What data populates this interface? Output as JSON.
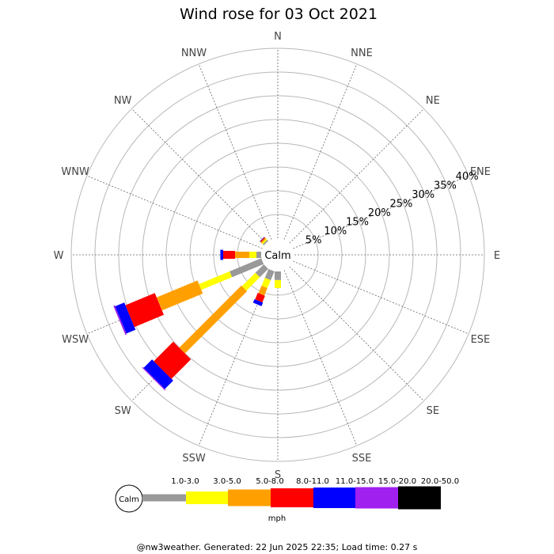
{
  "chart_data": {
    "type": "windrose",
    "title": "Wind rose for 03 Oct 2021",
    "directions": [
      "N",
      "NNE",
      "NE",
      "ENE",
      "E",
      "ESE",
      "SE",
      "SSE",
      "S",
      "SSW",
      "SW",
      "WSW",
      "W",
      "WNW",
      "NW",
      "NNW"
    ],
    "rings": [
      5,
      10,
      15,
      20,
      25,
      30,
      35,
      40
    ],
    "ring_labels": [
      "5%",
      "10%",
      "15%",
      "20%",
      "25%",
      "30%",
      "35%",
      "40%"
    ],
    "max_percent": 40,
    "calm_label": "Calm",
    "units": "mph",
    "speed_bins": [
      {
        "label": "1.0-3.0",
        "color": "#999999"
      },
      {
        "label": "3.0-5.0",
        "color": "#ffff00"
      },
      {
        "label": "5.0-8.0",
        "color": "#ffa000"
      },
      {
        "label": "8.0-11.0",
        "color": "#ff0000"
      },
      {
        "label": "11.0-15.0",
        "color": "#0000ff"
      },
      {
        "label": "15.0-20.0",
        "color": "#a020f0"
      },
      {
        "label": "20.0-50.0",
        "color": "#000000"
      }
    ],
    "series": [
      {
        "direction": "NW",
        "cumulative": [
          0.3,
          0.6,
          0.9,
          1.1,
          1.2,
          1.2,
          1.2
        ]
      },
      {
        "direction": "W",
        "cumulative": [
          1.0,
          2.5,
          5.5,
          8.0,
          8.6,
          8.6,
          8.6
        ]
      },
      {
        "direction": "WSW",
        "cumulative": [
          7.2,
          14.2,
          23.5,
          30.2,
          32.3,
          32.6,
          32.6
        ]
      },
      {
        "direction": "SW",
        "cumulative": [
          2.5,
          6.5,
          25.0,
          30.8,
          33.3,
          33.5,
          33.5
        ]
      },
      {
        "direction": "SSW",
        "cumulative": [
          2.0,
          3.8,
          5.5,
          7.0,
          7.8,
          7.8,
          7.8
        ]
      },
      {
        "direction": "S",
        "cumulative": [
          1.8,
          3.5,
          3.5,
          3.5,
          3.5,
          3.5,
          3.5
        ]
      }
    ]
  },
  "footer": "@nw3weather. Generated: 22 Jun 2025 22:35; Load time: 0.27 s"
}
